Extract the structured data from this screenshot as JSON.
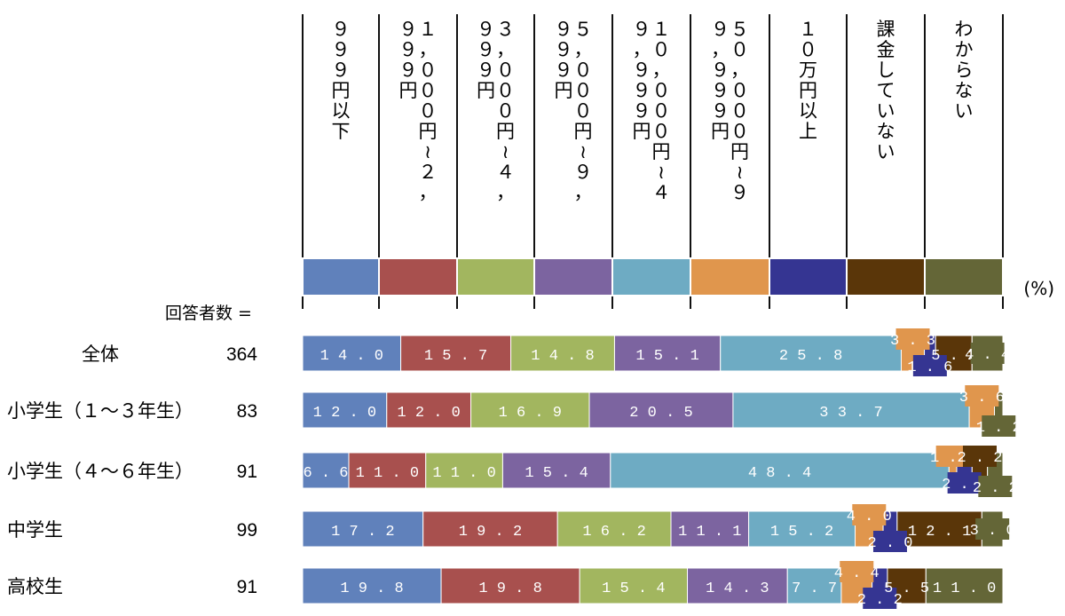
{
  "chart_data": {
    "type": "stacked-bar-horizontal",
    "percent_unit": "(%)",
    "respondents_label": "回答者数 =",
    "categories": [
      {
        "label": "９９９円以下",
        "color": "#6081bb"
      },
      {
        "label": "１，０００円〜２，９９９円",
        "color": "#a8504e"
      },
      {
        "label": "３，０００円〜４，９９９円",
        "color": "#a2b65f"
      },
      {
        "label": "５，０００円〜９，９９９円",
        "color": "#7c64a0"
      },
      {
        "label": "１０，０００円〜４９，９９９円",
        "color": "#6eabc3"
      },
      {
        "label": "５０，０００円〜９９，９９９円",
        "color": "#e0964d"
      },
      {
        "label": "１０万円以上",
        "color": "#353592"
      },
      {
        "label": "課金していない",
        "color": "#5a3609"
      },
      {
        "label": "わからない",
        "color": "#646637"
      }
    ],
    "rows": [
      {
        "label": "全体",
        "n": "364",
        "values": [
          14.0,
          15.7,
          14.8,
          15.1,
          25.8,
          3.3,
          1.6,
          5.2,
          4.4
        ]
      },
      {
        "label": "小学生（１〜３年生）",
        "n": "83",
        "values": [
          12.0,
          12.0,
          16.9,
          20.5,
          33.7,
          3.6,
          0,
          0,
          1.2
        ]
      },
      {
        "label": "小学生（４〜６年生）",
        "n": "91",
        "values": [
          6.6,
          11.0,
          11.0,
          15.4,
          48.4,
          1.1,
          2.2,
          2.2,
          2.2
        ]
      },
      {
        "label": "中学生",
        "n": "99",
        "values": [
          17.2,
          19.2,
          16.2,
          11.1,
          15.2,
          4.0,
          2.0,
          12.1,
          3.0
        ]
      },
      {
        "label": "高校生",
        "n": "91",
        "values": [
          19.8,
          19.8,
          15.4,
          14.3,
          7.7,
          4.4,
          2.2,
          5.5,
          11.0
        ]
      }
    ]
  }
}
